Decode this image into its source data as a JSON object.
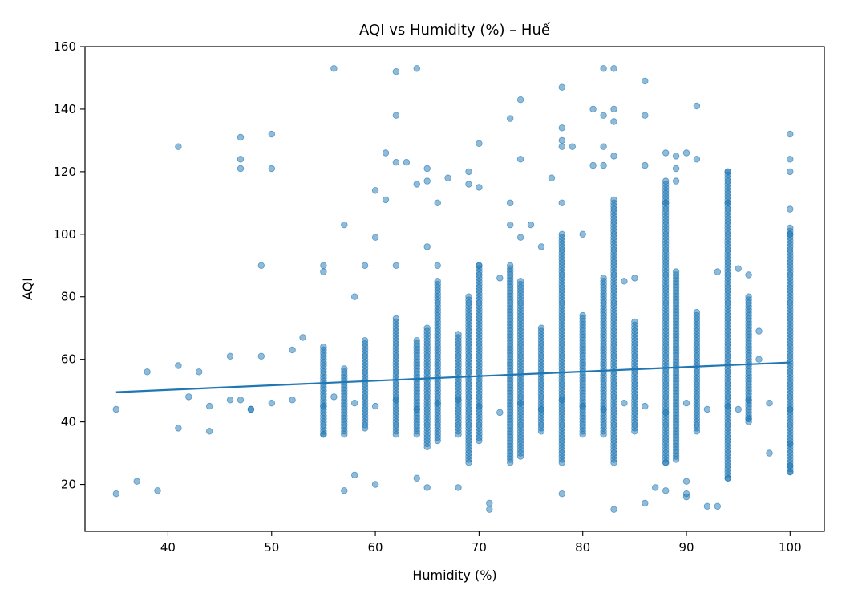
{
  "chart_data": {
    "type": "scatter",
    "title": "AQI vs Humidity (%) – Huế",
    "xlabel": "Humidity (%)",
    "ylabel": "AQI",
    "xlim": [
      32,
      103.3
    ],
    "ylim": [
      5,
      160
    ],
    "xticks": [
      40,
      50,
      60,
      70,
      80,
      90,
      100
    ],
    "yticks": [
      20,
      40,
      60,
      80,
      100,
      120,
      140,
      160
    ],
    "grid": false,
    "colors": {
      "point": "#1f77b4",
      "trend": "#1f77b4",
      "axis": "#000000"
    },
    "point_opacity": 0.5,
    "trend_line": {
      "x": [
        35,
        100
      ],
      "y": [
        49.5,
        59
      ]
    },
    "series": [
      {
        "x": [
          35,
          35,
          37,
          38,
          39,
          41,
          41,
          41,
          42,
          43,
          44,
          46,
          47,
          47,
          47,
          47,
          48,
          49,
          49,
          50,
          50,
          52,
          53,
          55,
          55,
          55,
          56,
          57,
          57,
          58,
          58,
          59,
          60,
          60,
          60,
          61,
          61,
          62,
          62,
          62,
          62,
          63,
          64,
          64,
          64,
          65,
          65,
          65,
          65,
          66,
          66,
          67,
          68,
          69,
          69,
          70,
          70,
          70,
          71,
          71,
          72,
          73,
          73,
          73,
          74,
          74,
          74,
          75,
          76,
          77,
          78,
          78,
          78,
          78,
          78,
          78,
          79,
          80,
          81,
          81,
          82,
          82,
          82,
          82,
          83,
          83,
          83,
          83,
          83,
          84,
          85,
          86,
          86,
          86,
          86,
          87,
          88,
          88,
          88,
          88,
          89,
          89,
          89,
          89,
          90,
          90,
          90,
          90,
          91,
          91,
          92,
          93,
          93,
          94,
          94,
          94,
          95,
          95,
          96,
          96,
          97,
          97,
          98,
          100,
          100,
          100,
          100,
          100,
          100,
          100,
          100
        ],
        "y": [
          17,
          44,
          21,
          56,
          18,
          128,
          58,
          38,
          48,
          56,
          37,
          61,
          131,
          124,
          121,
          47,
          44,
          90,
          61,
          132,
          121,
          63,
          67,
          90,
          88,
          36,
          153,
          103,
          18,
          80,
          23,
          90,
          114,
          99,
          20,
          126,
          111,
          152,
          138,
          123,
          90,
          123,
          153,
          116,
          22,
          121,
          117,
          96,
          19,
          90,
          110,
          118,
          19,
          116,
          120,
          129,
          115,
          90,
          14,
          12,
          86,
          110,
          137,
          103,
          143,
          124,
          99,
          103,
          96,
          118,
          147,
          134,
          130,
          128,
          110,
          17,
          128,
          100,
          140,
          122,
          153,
          138,
          128,
          122,
          153,
          140,
          136,
          125,
          12,
          85,
          86,
          149,
          138,
          122,
          14,
          19,
          126,
          110,
          27,
          18,
          125,
          121,
          117,
          28,
          126,
          17,
          21,
          16,
          141,
          124,
          13,
          88,
          13,
          120,
          110,
          22,
          89,
          44,
          87,
          41,
          69,
          60,
          30,
          132,
          124,
          120,
          108,
          100,
          33,
          26,
          24
        ]
      },
      {
        "x": [
          44,
          46,
          48,
          50,
          52,
          55,
          56,
          58,
          60,
          62,
          64,
          66,
          68,
          70,
          72,
          74,
          76,
          78,
          80,
          82,
          84,
          86,
          88,
          90,
          92,
          94,
          96,
          98,
          100
        ],
        "y": [
          45,
          47,
          44,
          46,
          47,
          45,
          48,
          46,
          45,
          47,
          44,
          46,
          47,
          45,
          43,
          46,
          44,
          47,
          45,
          44,
          46,
          45,
          43,
          46,
          44,
          45,
          47,
          46,
          44
        ]
      }
    ],
    "columns": [
      {
        "x": 55,
        "y_min": 36,
        "y_max": 64
      },
      {
        "x": 57,
        "y_min": 36,
        "y_max": 57
      },
      {
        "x": 59,
        "y_min": 38,
        "y_max": 66
      },
      {
        "x": 62,
        "y_min": 36,
        "y_max": 73
      },
      {
        "x": 64,
        "y_min": 36,
        "y_max": 66
      },
      {
        "x": 65,
        "y_min": 32,
        "y_max": 70
      },
      {
        "x": 66,
        "y_min": 34,
        "y_max": 85
      },
      {
        "x": 68,
        "y_min": 36,
        "y_max": 68
      },
      {
        "x": 69,
        "y_min": 27,
        "y_max": 80
      },
      {
        "x": 70,
        "y_min": 34,
        "y_max": 90
      },
      {
        "x": 73,
        "y_min": 27,
        "y_max": 90
      },
      {
        "x": 74,
        "y_min": 29,
        "y_max": 85
      },
      {
        "x": 76,
        "y_min": 37,
        "y_max": 70
      },
      {
        "x": 78,
        "y_min": 27,
        "y_max": 100
      },
      {
        "x": 80,
        "y_min": 36,
        "y_max": 74
      },
      {
        "x": 82,
        "y_min": 36,
        "y_max": 86
      },
      {
        "x": 83,
        "y_min": 27,
        "y_max": 111
      },
      {
        "x": 85,
        "y_min": 37,
        "y_max": 72
      },
      {
        "x": 88,
        "y_min": 27,
        "y_max": 117
      },
      {
        "x": 89,
        "y_min": 29,
        "y_max": 88
      },
      {
        "x": 91,
        "y_min": 37,
        "y_max": 75
      },
      {
        "x": 94,
        "y_min": 22,
        "y_max": 120
      },
      {
        "x": 96,
        "y_min": 40,
        "y_max": 80
      },
      {
        "x": 100,
        "y_min": 24,
        "y_max": 102
      }
    ]
  }
}
